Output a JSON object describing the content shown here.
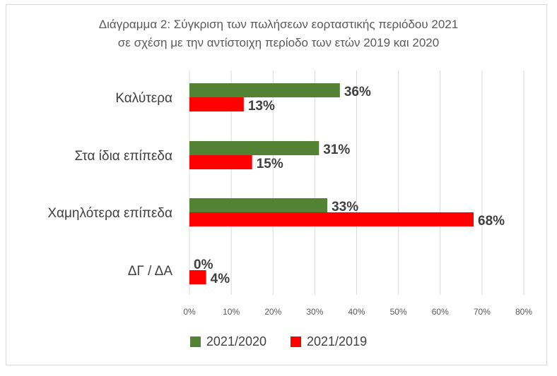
{
  "title_line1": "Διάγραμμα 2: Σύγκριση των πωλήσεων εορταστικής περιόδου 2021",
  "title_line2": "σε σχέση με την αντίστοιχη περίοδο των ετών 2019 και 2020",
  "chart_data": {
    "type": "bar",
    "orientation": "horizontal",
    "title": "Διάγραμμα 2: Σύγκριση των πωλήσεων εορταστικής περιόδου 2021 σε σχέση με την αντίστοιχη περίοδο των ετών 2019 και 2020",
    "categories": [
      "Καλύτερα",
      "Στα ίδια επίπεδα",
      "Χαμηλότερα επίπεδα",
      "ΔΓ / ΔΑ"
    ],
    "series": [
      {
        "name": "2021/2020",
        "color": "#548235",
        "values": [
          36,
          31,
          33,
          0
        ],
        "labels": [
          "36%",
          "31%",
          "33%",
          "0%"
        ]
      },
      {
        "name": "2021/2019",
        "color": "#ff0000",
        "values": [
          13,
          15,
          68,
          4
        ],
        "labels": [
          "13%",
          "15%",
          "68%",
          "4%"
        ]
      }
    ],
    "xlim": [
      0,
      80
    ],
    "x_ticks": [
      "0%",
      "10%",
      "20%",
      "30%",
      "40%",
      "50%",
      "60%",
      "70%",
      "80%"
    ],
    "grid": "vertical",
    "legend_position": "bottom",
    "xlabel": "",
    "ylabel": ""
  }
}
